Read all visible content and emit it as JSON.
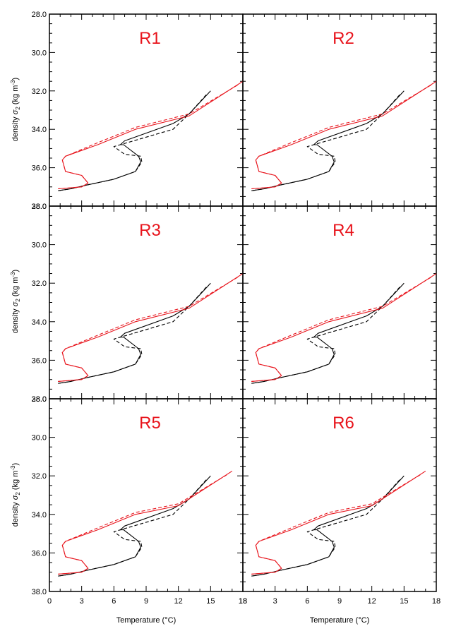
{
  "figure": {
    "x_axis_label": "Temperature (°C)",
    "y_axis_label_prefix": "density ",
    "y_axis_label_symbol": "σ",
    "y_axis_label_sub": "2",
    "y_axis_label_unit_open": " (kg m",
    "y_axis_label_unit_sup": "-3",
    "y_axis_label_unit_close": ")"
  },
  "chart_data": {
    "type": "line",
    "layout": "3x2 panel grid",
    "xlabel": "Temperature (°C)",
    "ylabel": "density σ2 (kg m-3)",
    "xlim": [
      0,
      18
    ],
    "ylim": [
      28.0,
      38.0
    ],
    "y_inverted": true,
    "x_ticks": [
      0,
      3,
      6,
      9,
      12,
      15,
      18
    ],
    "x_tick_labels": [
      "0",
      "3",
      "6",
      "9",
      "12",
      "15",
      "18"
    ],
    "y_ticks": [
      28.0,
      30.0,
      32.0,
      34.0,
      36.0,
      38.0
    ],
    "y_tick_labels": [
      "28.0",
      "30.0",
      "32.0",
      "34.0",
      "36.0",
      "38.0"
    ],
    "bottom_left_x_tick_labels": [
      "0",
      "3",
      "6",
      "9",
      "12",
      "15",
      "18"
    ],
    "bottom_right_x_tick_labels": [
      "18",
      "3",
      "6",
      "9",
      "12",
      "15",
      "18"
    ],
    "grid": false,
    "legend": "none",
    "colors": {
      "black": "#000000",
      "red": "#e8141c",
      "title_red": "#e8141c"
    },
    "base_curves": {
      "black_solid": {
        "x": [
          15.0,
          13.0,
          11.5,
          7.0,
          6.6,
          6.9,
          8.3,
          8.5,
          8.0,
          6.0,
          3.5,
          2.0,
          0.8
        ],
        "y": [
          32.0,
          33.2,
          33.7,
          34.6,
          34.8,
          34.8,
          35.4,
          35.7,
          36.2,
          36.6,
          36.9,
          37.1,
          37.2
        ]
      },
      "black_dashed": {
        "x": [
          14.6,
          13.0,
          11.5,
          6.0,
          7.0,
          8.5,
          8.6,
          8.0,
          6.0,
          3.5,
          2.0,
          0.8
        ],
        "y": [
          32.2,
          33.2,
          34.0,
          34.9,
          35.3,
          35.4,
          35.7,
          36.2,
          36.6,
          36.9,
          37.1,
          37.2
        ]
      },
      "red_solid": {
        "x": [
          18.0,
          13.0,
          8.0,
          4.5,
          1.5,
          1.2,
          1.5,
          3.0,
          3.6,
          3.0,
          0.8
        ],
        "y": [
          31.5,
          33.3,
          34.0,
          34.8,
          35.4,
          35.6,
          36.2,
          36.4,
          36.8,
          37.0,
          37.1
        ]
      },
      "red_dashed": {
        "x": [
          17.5,
          13.0,
          8.0,
          4.5,
          1.5,
          1.2,
          1.5,
          3.0,
          3.6,
          3.0,
          0.8
        ],
        "y": [
          31.7,
          33.2,
          33.9,
          34.7,
          35.4,
          35.6,
          36.2,
          36.4,
          36.8,
          37.0,
          37.1
        ]
      }
    },
    "panels": [
      {
        "title": "R1"
      },
      {
        "title": "R2"
      },
      {
        "title": "R3"
      },
      {
        "title": "R4"
      },
      {
        "title": "R5"
      },
      {
        "title": "R6"
      }
    ]
  }
}
